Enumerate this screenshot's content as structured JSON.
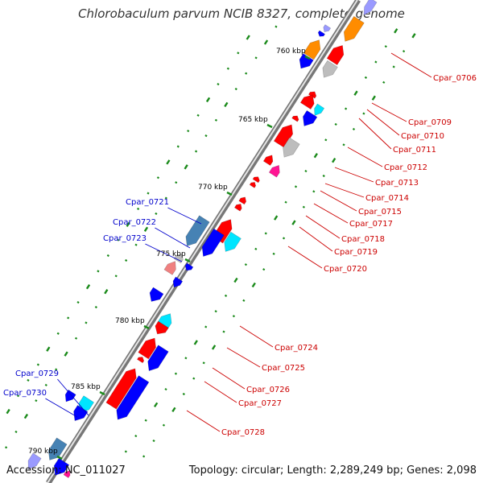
{
  "title": "Chlorobaculum parvum NCIB 8327, complete genome",
  "footer": {
    "accession": "Accession: NC_011027",
    "summary": "Topology: circular; Length: 2,289,249 bp; Genes: 2,098"
  },
  "scale_labels": [
    "760 kbp",
    "765 kbp",
    "770 kbp",
    "775 kbp",
    "780 kbp",
    "785 kbp",
    "790 kbp"
  ],
  "gene_labels": {
    "right": [
      "Cpar_0706",
      "Cpar_0709",
      "Cpar_0710",
      "Cpar_0711",
      "Cpar_0712",
      "Cpar_0713",
      "Cpar_0714",
      "Cpar_0715",
      "Cpar_0717",
      "Cpar_0718",
      "Cpar_0719",
      "Cpar_0720",
      "Cpar_0724",
      "Cpar_0725",
      "Cpar_0726",
      "Cpar_0727",
      "Cpar_0728"
    ],
    "left": [
      "Cpar_0721",
      "Cpar_0722",
      "Cpar_0723",
      "Cpar_0729",
      "Cpar_0730"
    ]
  },
  "colors": {
    "red": "#ff0000",
    "blue": "#0000ff",
    "cyan": "#00e5ff",
    "gray": "#bdbdbd",
    "orange": "#ff8c00",
    "steelblue": "#4682b4",
    "pink": "#ff1493",
    "salmon": "#f08080",
    "lavender": "#9a9aff",
    "green": "#008000",
    "label_red": "#cc0000",
    "label_blue": "#0000cc"
  }
}
